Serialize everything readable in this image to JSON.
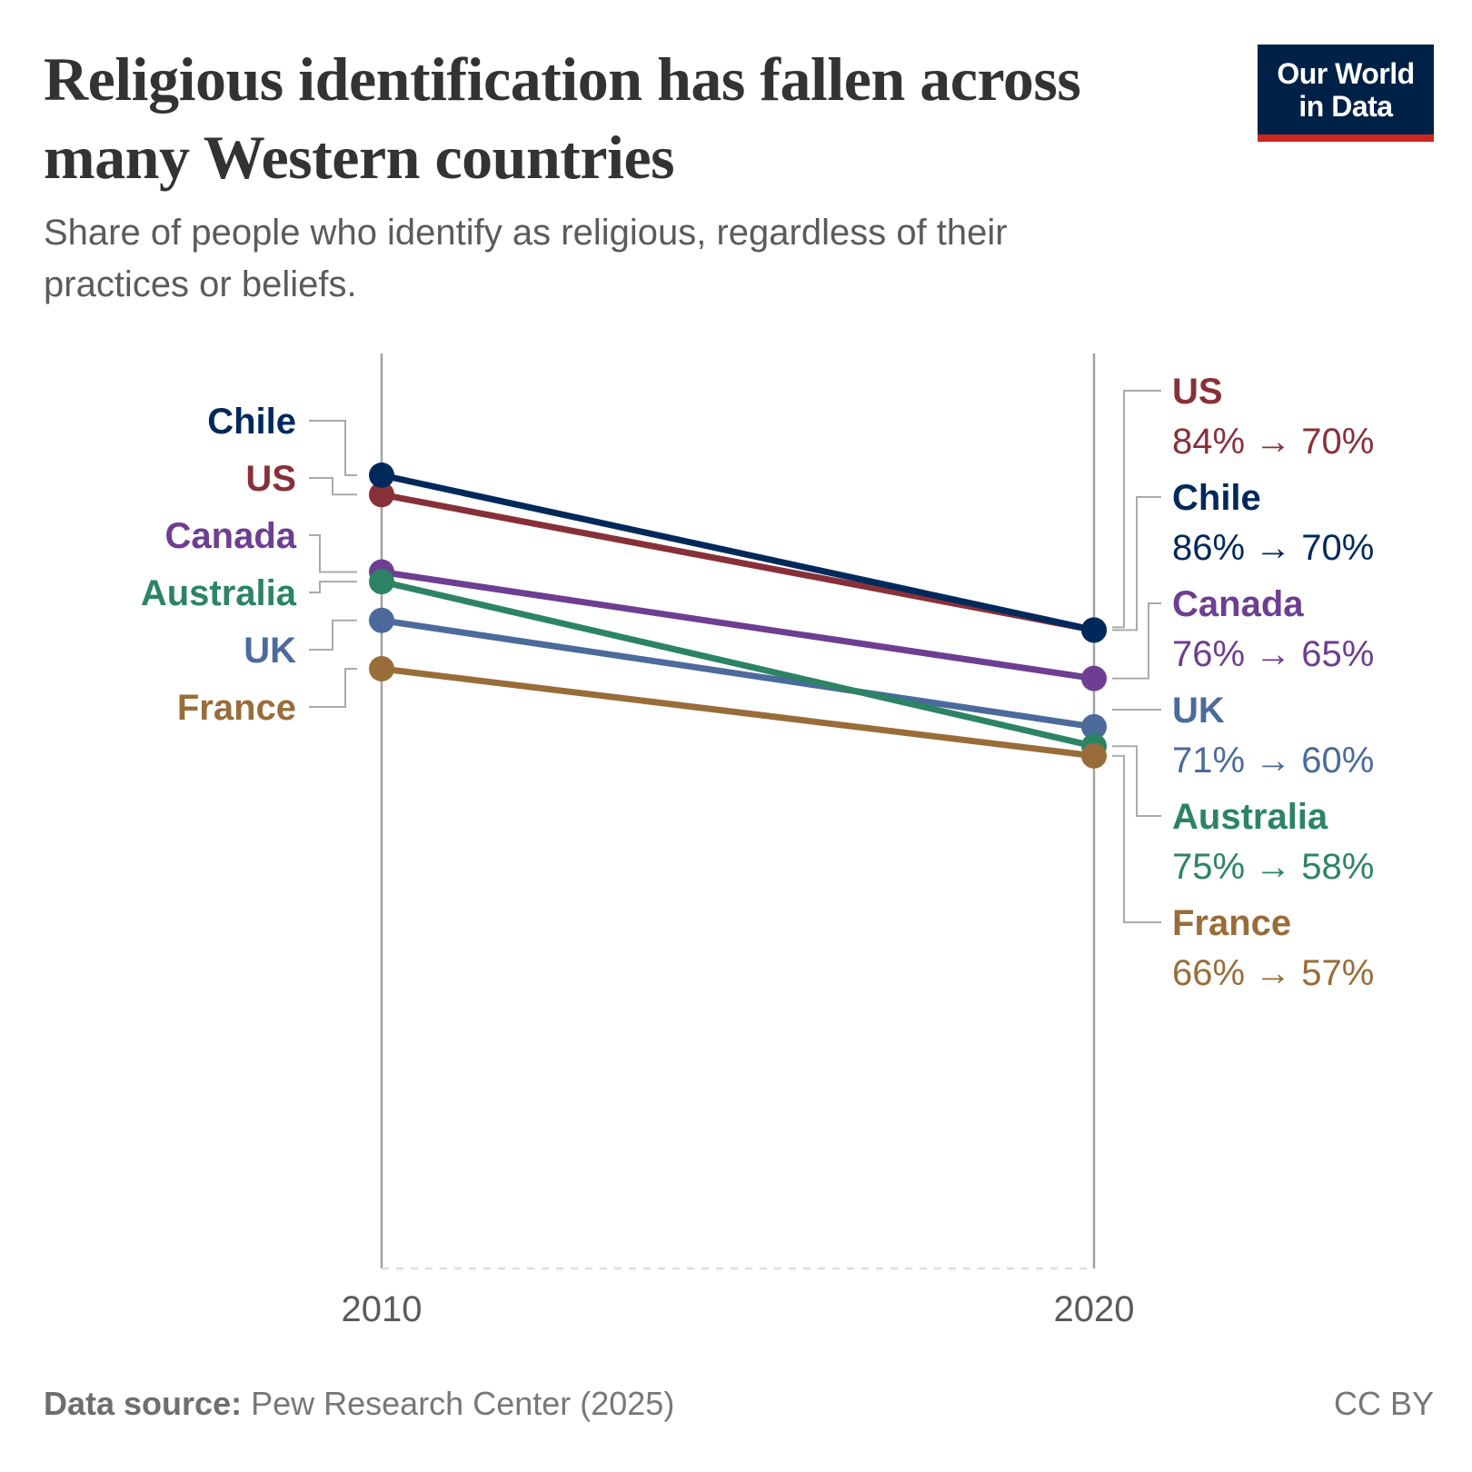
{
  "header": {
    "title": "Religious identification has fallen across many Western countries",
    "subtitle": "Share of people who identify as religious, regardless of their practices or beliefs.",
    "logo_line1": "Our World",
    "logo_line2": "in Data"
  },
  "footer": {
    "source_label": "Data source:",
    "source_text": "Pew Research Center (2025)",
    "license": "CC BY"
  },
  "chart_data": {
    "type": "slope",
    "x": [
      "2010",
      "2020"
    ],
    "y_unit": "%",
    "grid": false,
    "series": [
      {
        "name": "US",
        "values": [
          84,
          70
        ],
        "label": "84% → 70%",
        "color": "#883039"
      },
      {
        "name": "Chile",
        "values": [
          86,
          70
        ],
        "label": "86% → 70%",
        "color": "#00295b"
      },
      {
        "name": "Canada",
        "values": [
          76,
          65
        ],
        "label": "76% → 65%",
        "color": "#6d3e91"
      },
      {
        "name": "UK",
        "values": [
          71,
          60
        ],
        "label": "71% → 60%",
        "color": "#4c6a9c"
      },
      {
        "name": "Australia",
        "values": [
          75,
          58
        ],
        "label": "75% → 58%",
        "color": "#2c8465"
      },
      {
        "name": "France",
        "values": [
          66,
          57
        ],
        "label": "66% → 57%",
        "color": "#996d39"
      }
    ],
    "left_label_order": [
      "Chile",
      "US",
      "Canada",
      "Australia",
      "UK",
      "France"
    ]
  }
}
